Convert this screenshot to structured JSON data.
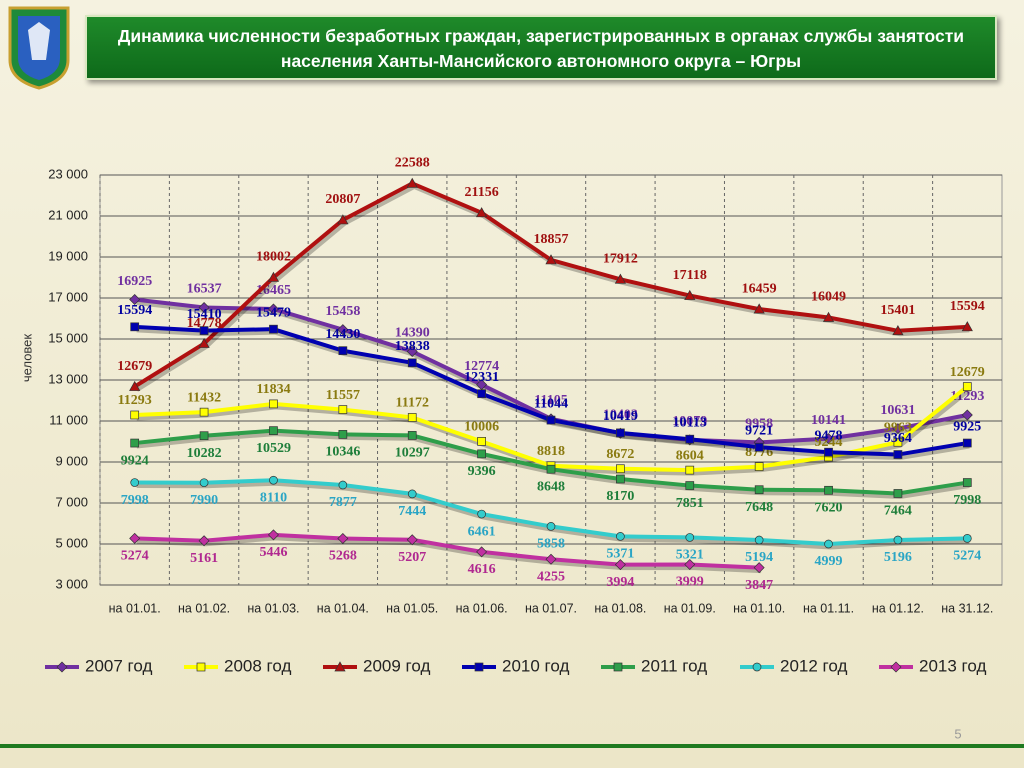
{
  "chart_data": {
    "type": "line",
    "title": "Динамика численности безработных граждан, зарегистрированных в органах службы занятости населения Ханты-Мансийского автономного округа – Югры",
    "ylabel": "человек",
    "page_number": "5",
    "categories": [
      "на 01.01.",
      "на 01.02.",
      "на 01.03.",
      "на 01.04.",
      "на 01.05.",
      "на 01.06.",
      "на 01.07.",
      "на 01.08.",
      "на 01.09.",
      "на 01.10.",
      "на 01.11.",
      "на 01.12.",
      "на 31.12."
    ],
    "ylim": [
      3000,
      23000
    ],
    "yticks": [
      {
        "value": 3000,
        "label": "3 000"
      },
      {
        "value": 5000,
        "label": "5 000"
      },
      {
        "value": 7000,
        "label": "7 000"
      },
      {
        "value": 9000,
        "label": "9 000"
      },
      {
        "value": 11000,
        "label": "11 000"
      },
      {
        "value": 13000,
        "label": "13 000"
      },
      {
        "value": 15000,
        "label": "15 000"
      },
      {
        "value": 17000,
        "label": "17 000"
      },
      {
        "value": 19000,
        "label": "19 000"
      },
      {
        "value": 21000,
        "label": "21 000"
      },
      {
        "value": 23000,
        "label": "23 000"
      }
    ],
    "grid": true,
    "legend": "bottom",
    "series": [
      {
        "name": "2007 год",
        "color": "#7030a0",
        "label_color": "#7030a0",
        "marker": "diamond",
        "values": [
          16925,
          16537,
          16465,
          15458,
          14390,
          12774,
          11105,
          10403,
          10079,
          9958,
          10141,
          10631,
          11293
        ]
      },
      {
        "name": "2008 год",
        "color": "#ffff00",
        "label_color": "#8a7a10",
        "marker": "square",
        "values": [
          11293,
          11432,
          11834,
          11557,
          11172,
          10006,
          8818,
          8672,
          8604,
          8776,
          9244,
          9963,
          12679
        ]
      },
      {
        "name": "2009 год",
        "color": "#b01010",
        "label_color": "#a01010",
        "marker": "triangle",
        "values": [
          12679,
          14778,
          18002,
          20807,
          22588,
          21156,
          18857,
          17912,
          17118,
          16459,
          16049,
          15401,
          15594
        ]
      },
      {
        "name": "2010 год",
        "color": "#0000b0",
        "label_color": "#0000a0",
        "marker": "square",
        "values": [
          15594,
          15410,
          15479,
          14430,
          13838,
          12331,
          11044,
          10419,
          10113,
          9721,
          9478,
          9364,
          9925
        ]
      },
      {
        "name": "2011 год",
        "color": "#2e9e4a",
        "label_color": "#1e7e3a",
        "marker": "square",
        "values": [
          9924,
          10282,
          10529,
          10346,
          10297,
          9396,
          8648,
          8170,
          7851,
          7648,
          7620,
          7464,
          7998
        ]
      },
      {
        "name": "2012 год",
        "color": "#33cccc",
        "label_color": "#2aa5c5",
        "marker": "circle",
        "values": [
          7998,
          7990,
          8110,
          7877,
          7444,
          6461,
          5858,
          5371,
          5321,
          5194,
          4999,
          5196,
          5274
        ]
      },
      {
        "name": "2013 год",
        "color": "#c030a0",
        "label_color": "#b02890",
        "marker": "diamond",
        "values": [
          5274,
          5161,
          5446,
          5268,
          5207,
          4616,
          4255,
          3994,
          3999,
          3847,
          null,
          null,
          null
        ]
      }
    ]
  }
}
